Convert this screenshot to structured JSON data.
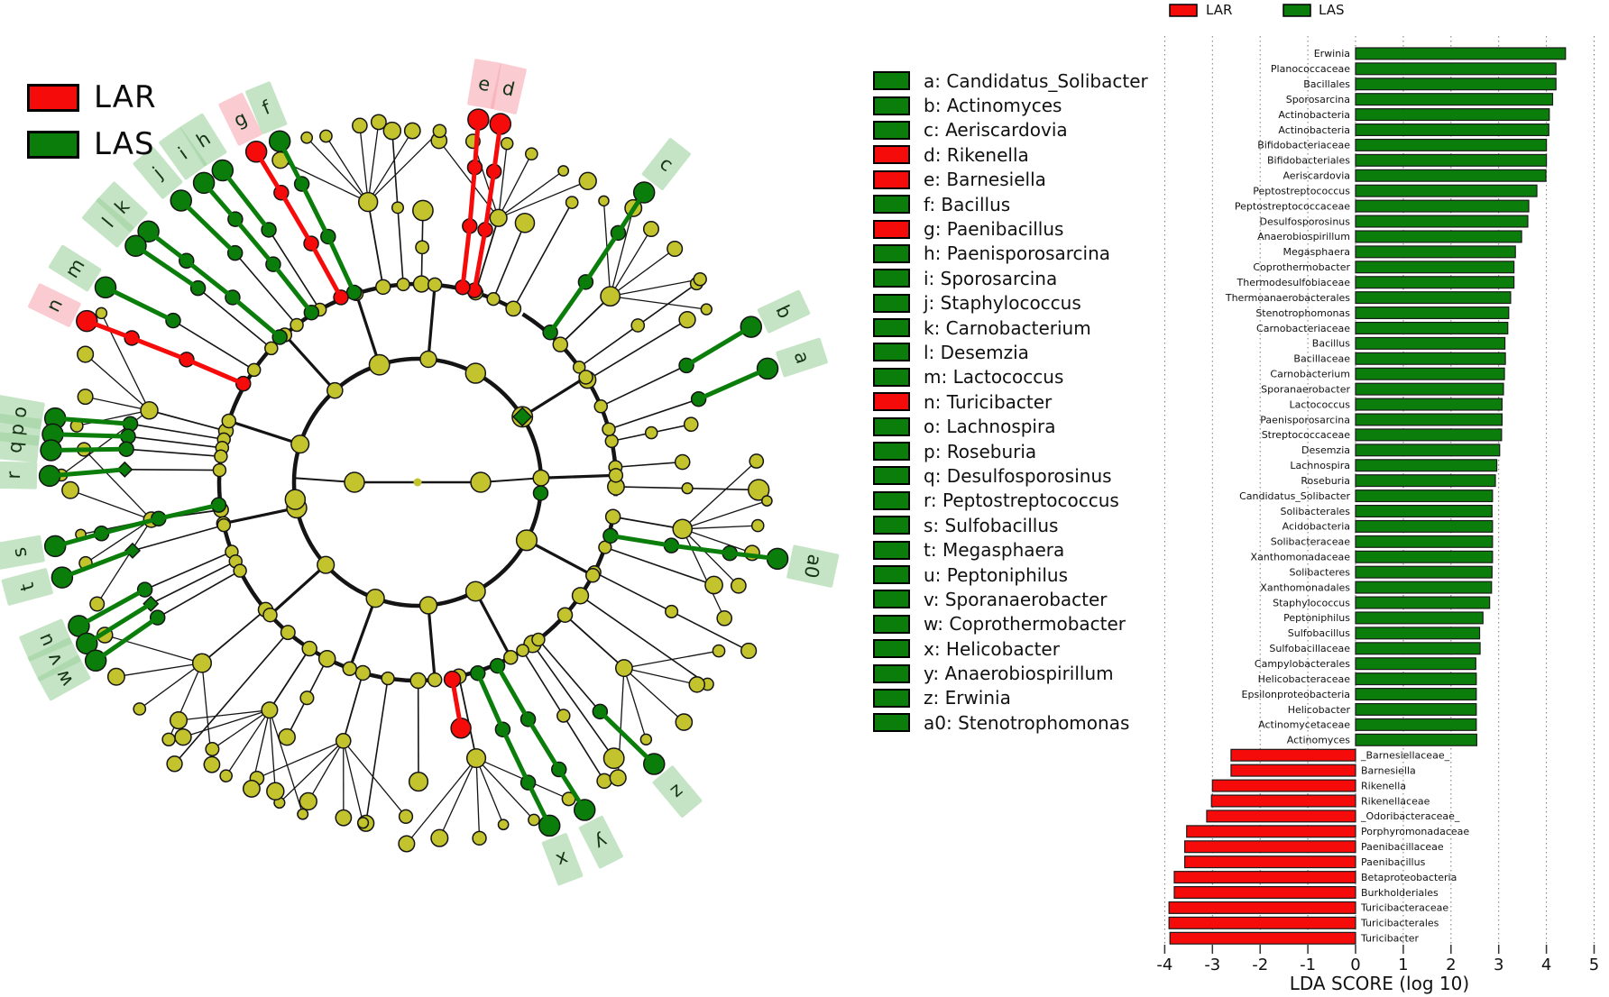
{
  "cladogram": {
    "legend": [
      {
        "label": "LAR",
        "color": "#f60b0b"
      },
      {
        "label": "LAS",
        "color": "#0a7d0a"
      }
    ],
    "colors": {
      "node_yellow": "#c3c32d",
      "edge": "#141414",
      "green": "#0a7d0a",
      "red": "#f60b0b",
      "label_bg_green": "#9ed29e",
      "label_bg_red": "#f6a9b3"
    },
    "labeled_nodes": [
      {
        "letter": "a",
        "angle": 72,
        "group": "LAS"
      },
      {
        "letter": "b",
        "angle": 65,
        "group": "LAS"
      },
      {
        "letter": "c",
        "angle": 38,
        "group": "LAS"
      },
      {
        "letter": "d",
        "angle": 13,
        "group": "LAR"
      },
      {
        "letter": "e",
        "angle": 9.5,
        "group": "LAR"
      },
      {
        "letter": "f",
        "angle": 338,
        "group": "LAS"
      },
      {
        "letter": "g",
        "angle": 334,
        "group": "LAR"
      },
      {
        "letter": "h",
        "angle": 328,
        "group": "LAS"
      },
      {
        "letter": "i",
        "angle": 324.5,
        "group": "LAS"
      },
      {
        "letter": "j",
        "angle": 320,
        "group": "LAS"
      },
      {
        "letter": "k",
        "angle": 313,
        "group": "LAS"
      },
      {
        "letter": "l",
        "angle": 310,
        "group": "LAS"
      },
      {
        "letter": "m",
        "angle": 302,
        "group": "LAS"
      },
      {
        "letter": "n",
        "angle": 296,
        "group": "LAR"
      },
      {
        "letter": "o",
        "angle": 280,
        "group": "LAS"
      },
      {
        "letter": "p",
        "angle": 277.5,
        "group": "LAS"
      },
      {
        "letter": "q",
        "angle": 275,
        "group": "LAS"
      },
      {
        "letter": "r",
        "angle": 271,
        "group": "LAS"
      },
      {
        "letter": "s",
        "angle": 260,
        "group": "LAS"
      },
      {
        "letter": "t",
        "angle": 255,
        "group": "LAS"
      },
      {
        "letter": "u",
        "angle": 247,
        "group": "LAS"
      },
      {
        "letter": "v",
        "angle": 244,
        "group": "LAS"
      },
      {
        "letter": "w",
        "angle": 241,
        "group": "LAS"
      },
      {
        "letter": "x",
        "angle": 159,
        "group": "LAS"
      },
      {
        "letter": "y",
        "angle": 153,
        "group": "LAS"
      },
      {
        "letter": "z",
        "angle": 140,
        "group": "LAS"
      },
      {
        "letter": "a0",
        "angle": 102,
        "group": "LAS"
      }
    ],
    "unlabeled_highlights": [
      {
        "angle": 170,
        "group": "LAR"
      }
    ]
  },
  "taxa_key": {
    "items": [
      {
        "letter": "a",
        "name": "Candidatus_Solibacter",
        "group": "LAS"
      },
      {
        "letter": "b",
        "name": "Actinomyces",
        "group": "LAS"
      },
      {
        "letter": "c",
        "name": "Aeriscardovia",
        "group": "LAS"
      },
      {
        "letter": "d",
        "name": "Rikenella",
        "group": "LAR"
      },
      {
        "letter": "e",
        "name": "Barnesiella",
        "group": "LAR"
      },
      {
        "letter": "f",
        "name": "Bacillus",
        "group": "LAS"
      },
      {
        "letter": "g",
        "name": "Paenibacillus",
        "group": "LAR"
      },
      {
        "letter": "h",
        "name": "Paenisporosarcina",
        "group": "LAS"
      },
      {
        "letter": "i",
        "name": "Sporosarcina",
        "group": "LAS"
      },
      {
        "letter": "j",
        "name": "Staphylococcus",
        "group": "LAS"
      },
      {
        "letter": "k",
        "name": "Carnobacterium",
        "group": "LAS"
      },
      {
        "letter": "l",
        "name": "Desemzia",
        "group": "LAS"
      },
      {
        "letter": "m",
        "name": "Lactococcus",
        "group": "LAS"
      },
      {
        "letter": "n",
        "name": "Turicibacter",
        "group": "LAR"
      },
      {
        "letter": "o",
        "name": "Lachnospira",
        "group": "LAS"
      },
      {
        "letter": "p",
        "name": "Roseburia",
        "group": "LAS"
      },
      {
        "letter": "q",
        "name": "Desulfosporosinus",
        "group": "LAS"
      },
      {
        "letter": "r",
        "name": "Peptostreptococcus",
        "group": "LAS"
      },
      {
        "letter": "s",
        "name": "Sulfobacillus",
        "group": "LAS"
      },
      {
        "letter": "t",
        "name": "Megasphaera",
        "group": "LAS"
      },
      {
        "letter": "u",
        "name": "Peptoniphilus",
        "group": "LAS"
      },
      {
        "letter": "v",
        "name": "Sporanaerobacter",
        "group": "LAS"
      },
      {
        "letter": "w",
        "name": "Coprothermobacter",
        "group": "LAS"
      },
      {
        "letter": "x",
        "name": "Helicobacter",
        "group": "LAS"
      },
      {
        "letter": "y",
        "name": "Anaerobiospirillum",
        "group": "LAS"
      },
      {
        "letter": "z",
        "name": "Erwinia",
        "group": "LAS"
      },
      {
        "letter": "a0",
        "name": "Stenotrophomonas",
        "group": "LAS"
      }
    ]
  },
  "chart_data": {
    "type": "bar",
    "orientation": "horizontal",
    "xlabel": "LDA SCORE (log 10)",
    "xlim": [
      -4,
      5
    ],
    "xticks": [
      "-4",
      "-3",
      "-2",
      "-1",
      "0",
      "1",
      "2",
      "3",
      "4",
      "5"
    ],
    "grid": "dotted-vertical",
    "legend_position": "top-center",
    "legend": [
      {
        "label": "LAR",
        "color": "#f60b0b"
      },
      {
        "label": "LAS",
        "color": "#0a7d0a"
      }
    ],
    "bars": [
      {
        "label": "Erwinia",
        "value": 4.4,
        "group": "LAS"
      },
      {
        "label": "Planococcaceae",
        "value": 4.2,
        "group": "LAS"
      },
      {
        "label": "Bacillales",
        "value": 4.2,
        "group": "LAS"
      },
      {
        "label": "Sporosarcina",
        "value": 4.13,
        "group": "LAS"
      },
      {
        "label": "Actinobacteria",
        "value": 4.06,
        "group": "LAS"
      },
      {
        "label": "Actinobacteria",
        "value": 4.05,
        "group": "LAS"
      },
      {
        "label": "Bifidobacteriaceae",
        "value": 4.0,
        "group": "LAS"
      },
      {
        "label": "Bifidobacteriales",
        "value": 4.0,
        "group": "LAS"
      },
      {
        "label": "Aeriscardovia",
        "value": 3.99,
        "group": "LAS"
      },
      {
        "label": "Peptostreptococcus",
        "value": 3.8,
        "group": "LAS"
      },
      {
        "label": "Peptostreptococcaceae",
        "value": 3.63,
        "group": "LAS"
      },
      {
        "label": "Desulfosporosinus",
        "value": 3.61,
        "group": "LAS"
      },
      {
        "label": "Anaerobiospirillum",
        "value": 3.48,
        "group": "LAS"
      },
      {
        "label": "Megasphaera",
        "value": 3.35,
        "group": "LAS"
      },
      {
        "label": "Coprothermobacter",
        "value": 3.32,
        "group": "LAS"
      },
      {
        "label": "Thermodesulfobiaceae",
        "value": 3.32,
        "group": "LAS"
      },
      {
        "label": "Thermoanaerobacterales",
        "value": 3.25,
        "group": "LAS"
      },
      {
        "label": "Stenotrophomonas",
        "value": 3.21,
        "group": "LAS"
      },
      {
        "label": "Carnobacteriaceae",
        "value": 3.19,
        "group": "LAS"
      },
      {
        "label": "Bacillus",
        "value": 3.13,
        "group": "LAS"
      },
      {
        "label": "Bacillaceae",
        "value": 3.14,
        "group": "LAS"
      },
      {
        "label": "Carnobacterium",
        "value": 3.12,
        "group": "LAS"
      },
      {
        "label": "Sporanaerobacter",
        "value": 3.1,
        "group": "LAS"
      },
      {
        "label": "Lactococcus",
        "value": 3.07,
        "group": "LAS"
      },
      {
        "label": "Paenisporosarcina",
        "value": 3.07,
        "group": "LAS"
      },
      {
        "label": "Streptococcaceae",
        "value": 3.06,
        "group": "LAS"
      },
      {
        "label": "Desemzia",
        "value": 3.02,
        "group": "LAS"
      },
      {
        "label": "Lachnospira",
        "value": 2.96,
        "group": "LAS"
      },
      {
        "label": "Roseburia",
        "value": 2.93,
        "group": "LAS"
      },
      {
        "label": "Candidatus_Solibacter",
        "value": 2.87,
        "group": "LAS"
      },
      {
        "label": "Solibacterales",
        "value": 2.86,
        "group": "LAS"
      },
      {
        "label": "Acidobacteria",
        "value": 2.87,
        "group": "LAS"
      },
      {
        "label": "Solibacteraceae",
        "value": 2.87,
        "group": "LAS"
      },
      {
        "label": "Xanthomonadaceae",
        "value": 2.87,
        "group": "LAS"
      },
      {
        "label": "Solibacteres",
        "value": 2.86,
        "group": "LAS"
      },
      {
        "label": "Xanthomonadales",
        "value": 2.85,
        "group": "LAS"
      },
      {
        "label": "Staphylococcus",
        "value": 2.81,
        "group": "LAS"
      },
      {
        "label": "Peptoniphilus",
        "value": 2.67,
        "group": "LAS"
      },
      {
        "label": "Sulfobacillus",
        "value": 2.6,
        "group": "LAS"
      },
      {
        "label": "Sulfobacillaceae",
        "value": 2.61,
        "group": "LAS"
      },
      {
        "label": "Campylobacterales",
        "value": 2.52,
        "group": "LAS"
      },
      {
        "label": "Helicobacteraceae",
        "value": 2.53,
        "group": "LAS"
      },
      {
        "label": "Epsilonproteobacteria",
        "value": 2.53,
        "group": "LAS"
      },
      {
        "label": "Helicobacter",
        "value": 2.53,
        "group": "LAS"
      },
      {
        "label": "Actinomycetaceae",
        "value": 2.53,
        "group": "LAS"
      },
      {
        "label": "Actinomyces",
        "value": 2.54,
        "group": "LAS"
      },
      {
        "label": "_Barnesiellaceae_",
        "value": -2.61,
        "group": "LAR"
      },
      {
        "label": "Barnesiella",
        "value": -2.61,
        "group": "LAR"
      },
      {
        "label": "Rikenella",
        "value": -3.0,
        "group": "LAR"
      },
      {
        "label": "Rikenellaceae",
        "value": -3.02,
        "group": "LAR"
      },
      {
        "label": "_Odoribacteraceae_",
        "value": -3.12,
        "group": "LAR"
      },
      {
        "label": "Porphyromonadaceae",
        "value": -3.54,
        "group": "LAR"
      },
      {
        "label": "Paenibacillaceae",
        "value": -3.58,
        "group": "LAR"
      },
      {
        "label": "Paenibacillus",
        "value": -3.58,
        "group": "LAR"
      },
      {
        "label": "Betaproteobacteria",
        "value": -3.8,
        "group": "LAR"
      },
      {
        "label": "Burkholderiales",
        "value": -3.8,
        "group": "LAR"
      },
      {
        "label": "Turicibacteraceae",
        "value": -3.91,
        "group": "LAR"
      },
      {
        "label": "Turicibacterales",
        "value": -3.91,
        "group": "LAR"
      },
      {
        "label": "Turicibacter",
        "value": -3.89,
        "group": "LAR"
      }
    ]
  }
}
